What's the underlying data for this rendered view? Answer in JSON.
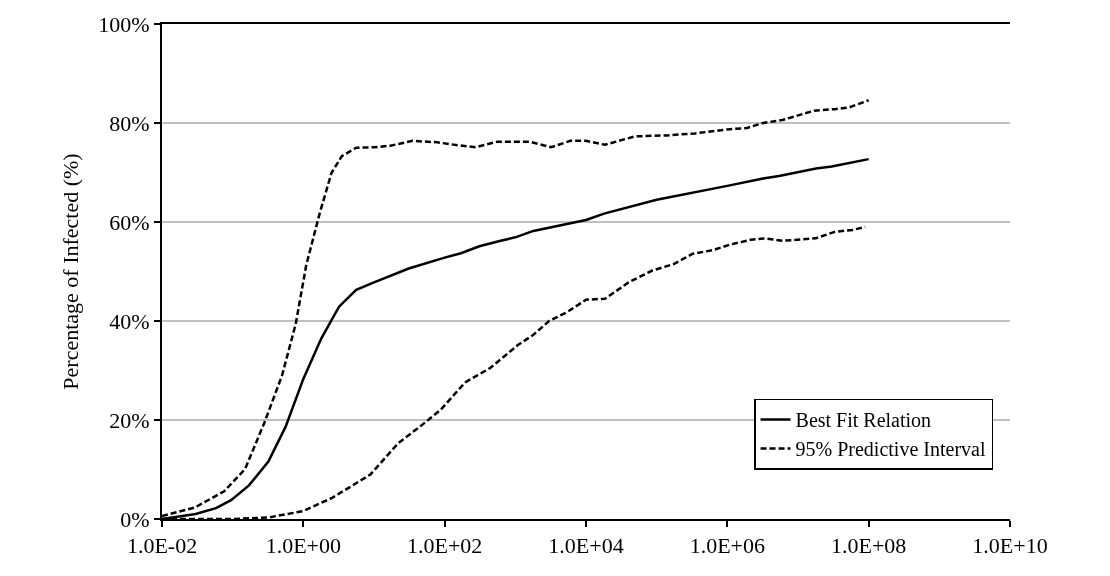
{
  "chart_data": {
    "type": "line",
    "ylabel": "Percentage of Infected (%)",
    "log": "x",
    "grid": "y",
    "legend": "bottom right",
    "marker": "none",
    "xlim": [
      0.01,
      10000000000.0
    ],
    "xticks": [
      {
        "value": 0.01,
        "label": "1.0E-02"
      },
      {
        "value": 1,
        "label": "1.0E+00"
      },
      {
        "value": 100,
        "label": "1.0E+02"
      },
      {
        "value": 10000.0,
        "label": "1.0E+04"
      },
      {
        "value": 1000000.0,
        "label": "1.0E+06"
      },
      {
        "value": 100000000.0,
        "label": "1.0E+08"
      },
      {
        "value": 10000000000.0,
        "label": "1.0E+10"
      }
    ],
    "ylim": [
      0,
      100
    ],
    "yticks": [
      {
        "value": 0,
        "label": "0%"
      },
      {
        "value": 20,
        "label": "20%"
      },
      {
        "value": 40,
        "label": "40%"
      },
      {
        "value": 60,
        "label": "60%"
      },
      {
        "value": 80,
        "label": "80%"
      },
      {
        "value": 100,
        "label": "100%"
      }
    ],
    "series": [
      {
        "name": "Best Fit Relation",
        "color": "#000000",
        "line_style": "solid",
        "x": [
          0.01,
          0.03,
          0.058,
          0.095,
          0.17,
          0.32,
          0.56,
          1,
          1.8,
          3.2,
          5.6,
          10,
          31,
          100,
          170,
          310,
          620,
          1000,
          1800,
          10000,
          18000,
          100000,
          1000000,
          3200000,
          5400000,
          18000000,
          30000000,
          100000000
        ],
        "values": [
          0,
          1.0,
          2.2,
          3.8,
          6.8,
          11.6,
          18.6,
          28.3,
          36.5,
          42.9,
          46.3,
          47.8,
          50.6,
          52.8,
          53.7,
          55.1,
          56.2,
          56.9,
          58.2,
          60.4,
          61.7,
          64.5,
          67.3,
          68.8,
          69.3,
          70.8,
          71.2,
          72.7
        ]
      },
      {
        "name": "95% Predictive Interval",
        "color": "#000000",
        "line_style": "dashed",
        "x": [
          0.01,
          0.029,
          0.076,
          0.15,
          0.28,
          0.5,
          0.78,
          1.1,
          1.7,
          2.5,
          3.5,
          5.6,
          10,
          17,
          35,
          78,
          155,
          275,
          550,
          1600,
          3200,
          6000,
          10000,
          18600,
          49000,
          138000,
          350000,
          1000000,
          1900000,
          3200000,
          6000000,
          17000000,
          33000000,
          52000000,
          100000000
        ],
        "values": [
          0.6,
          2.3,
          5.6,
          10.1,
          19.4,
          29.0,
          39.4,
          51.3,
          61.7,
          69.9,
          73.3,
          75.0,
          75.1,
          75.4,
          76.4,
          76.1,
          75.5,
          75.1,
          76.2,
          76.2,
          75.1,
          76.4,
          76.4,
          75.6,
          77.3,
          77.5,
          77.9,
          78.7,
          79.0,
          80.0,
          80.6,
          82.5,
          82.8,
          83.1,
          84.6
        ]
      },
      {
        "color": "#000000",
        "line_style": "dashed",
        "x": [
          0.01,
          0.1,
          0.32,
          1,
          2.5,
          4.5,
          8.9,
          22,
          44,
          87,
          195,
          440,
          1100,
          1800,
          3000,
          5400,
          10000,
          18600,
          40000,
          87000,
          174000,
          324000,
          620000,
          1070000,
          2140000,
          3400000,
          6000000,
          17800000,
          33000000,
          59000000,
          89000000
        ],
        "values": [
          0,
          0,
          0.3,
          1.6,
          4.2,
          6.4,
          9.0,
          15.3,
          18.6,
          22.0,
          27.6,
          30.5,
          35.2,
          37.2,
          40.0,
          41.8,
          44.3,
          44.5,
          47.8,
          50.2,
          51.5,
          53.6,
          54.3,
          55.4,
          56.4,
          56.7,
          56.2,
          56.7,
          58.0,
          58.4,
          59.0
        ]
      }
    ]
  }
}
